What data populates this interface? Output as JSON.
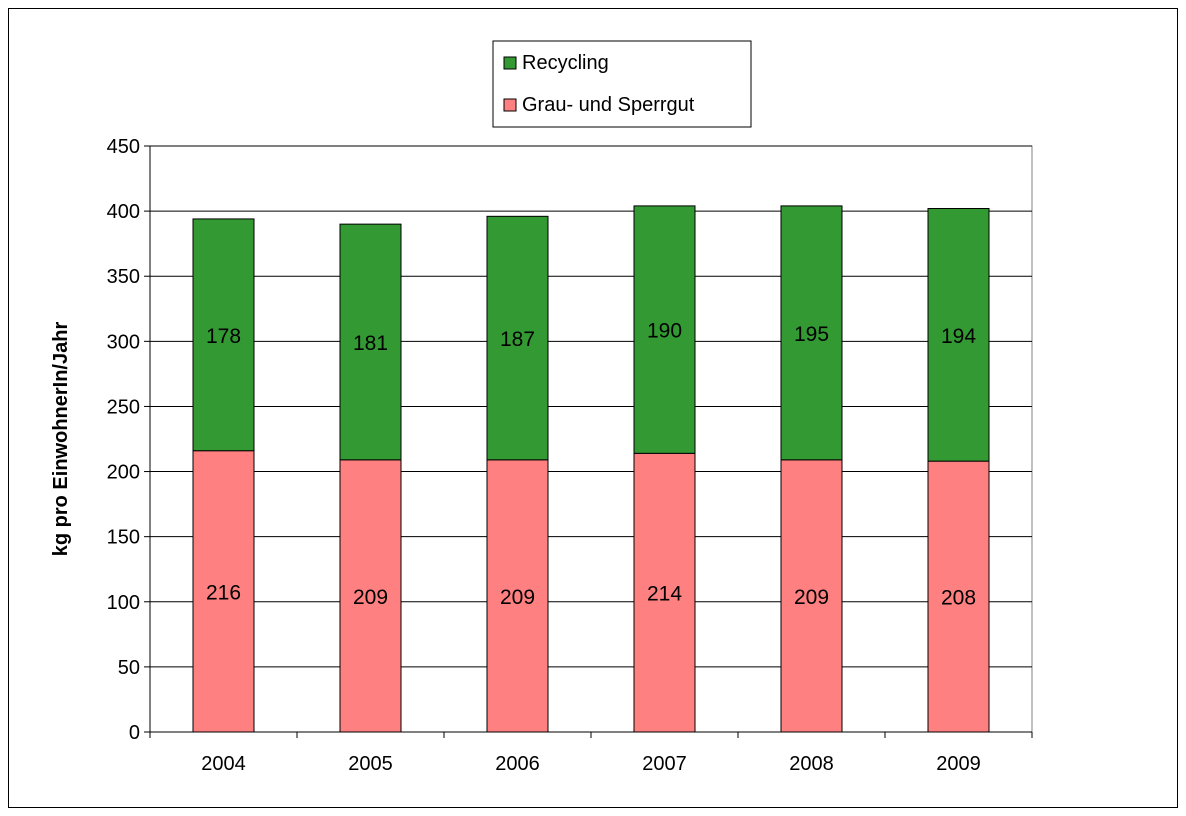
{
  "chart_data": {
    "type": "bar",
    "stacked": true,
    "categories": [
      "2004",
      "2005",
      "2006",
      "2007",
      "2008",
      "2009"
    ],
    "series": [
      {
        "name": "Grau- und Sperrgut",
        "values": [
          216,
          209,
          209,
          214,
          209,
          208
        ],
        "color": "#ff8080"
      },
      {
        "name": "Recycling",
        "values": [
          178,
          181,
          187,
          190,
          195,
          194
        ],
        "color": "#339933"
      }
    ],
    "ylabel": "kg pro EinwohnerIn/Jahr",
    "ylim": [
      0,
      450
    ],
    "yticks": [
      0,
      50,
      100,
      150,
      200,
      250,
      300,
      350,
      400,
      450
    ],
    "grid": true,
    "legend": {
      "placement": "top-center",
      "entries": [
        "Recycling",
        "Grau- und Sperrgut"
      ]
    }
  }
}
